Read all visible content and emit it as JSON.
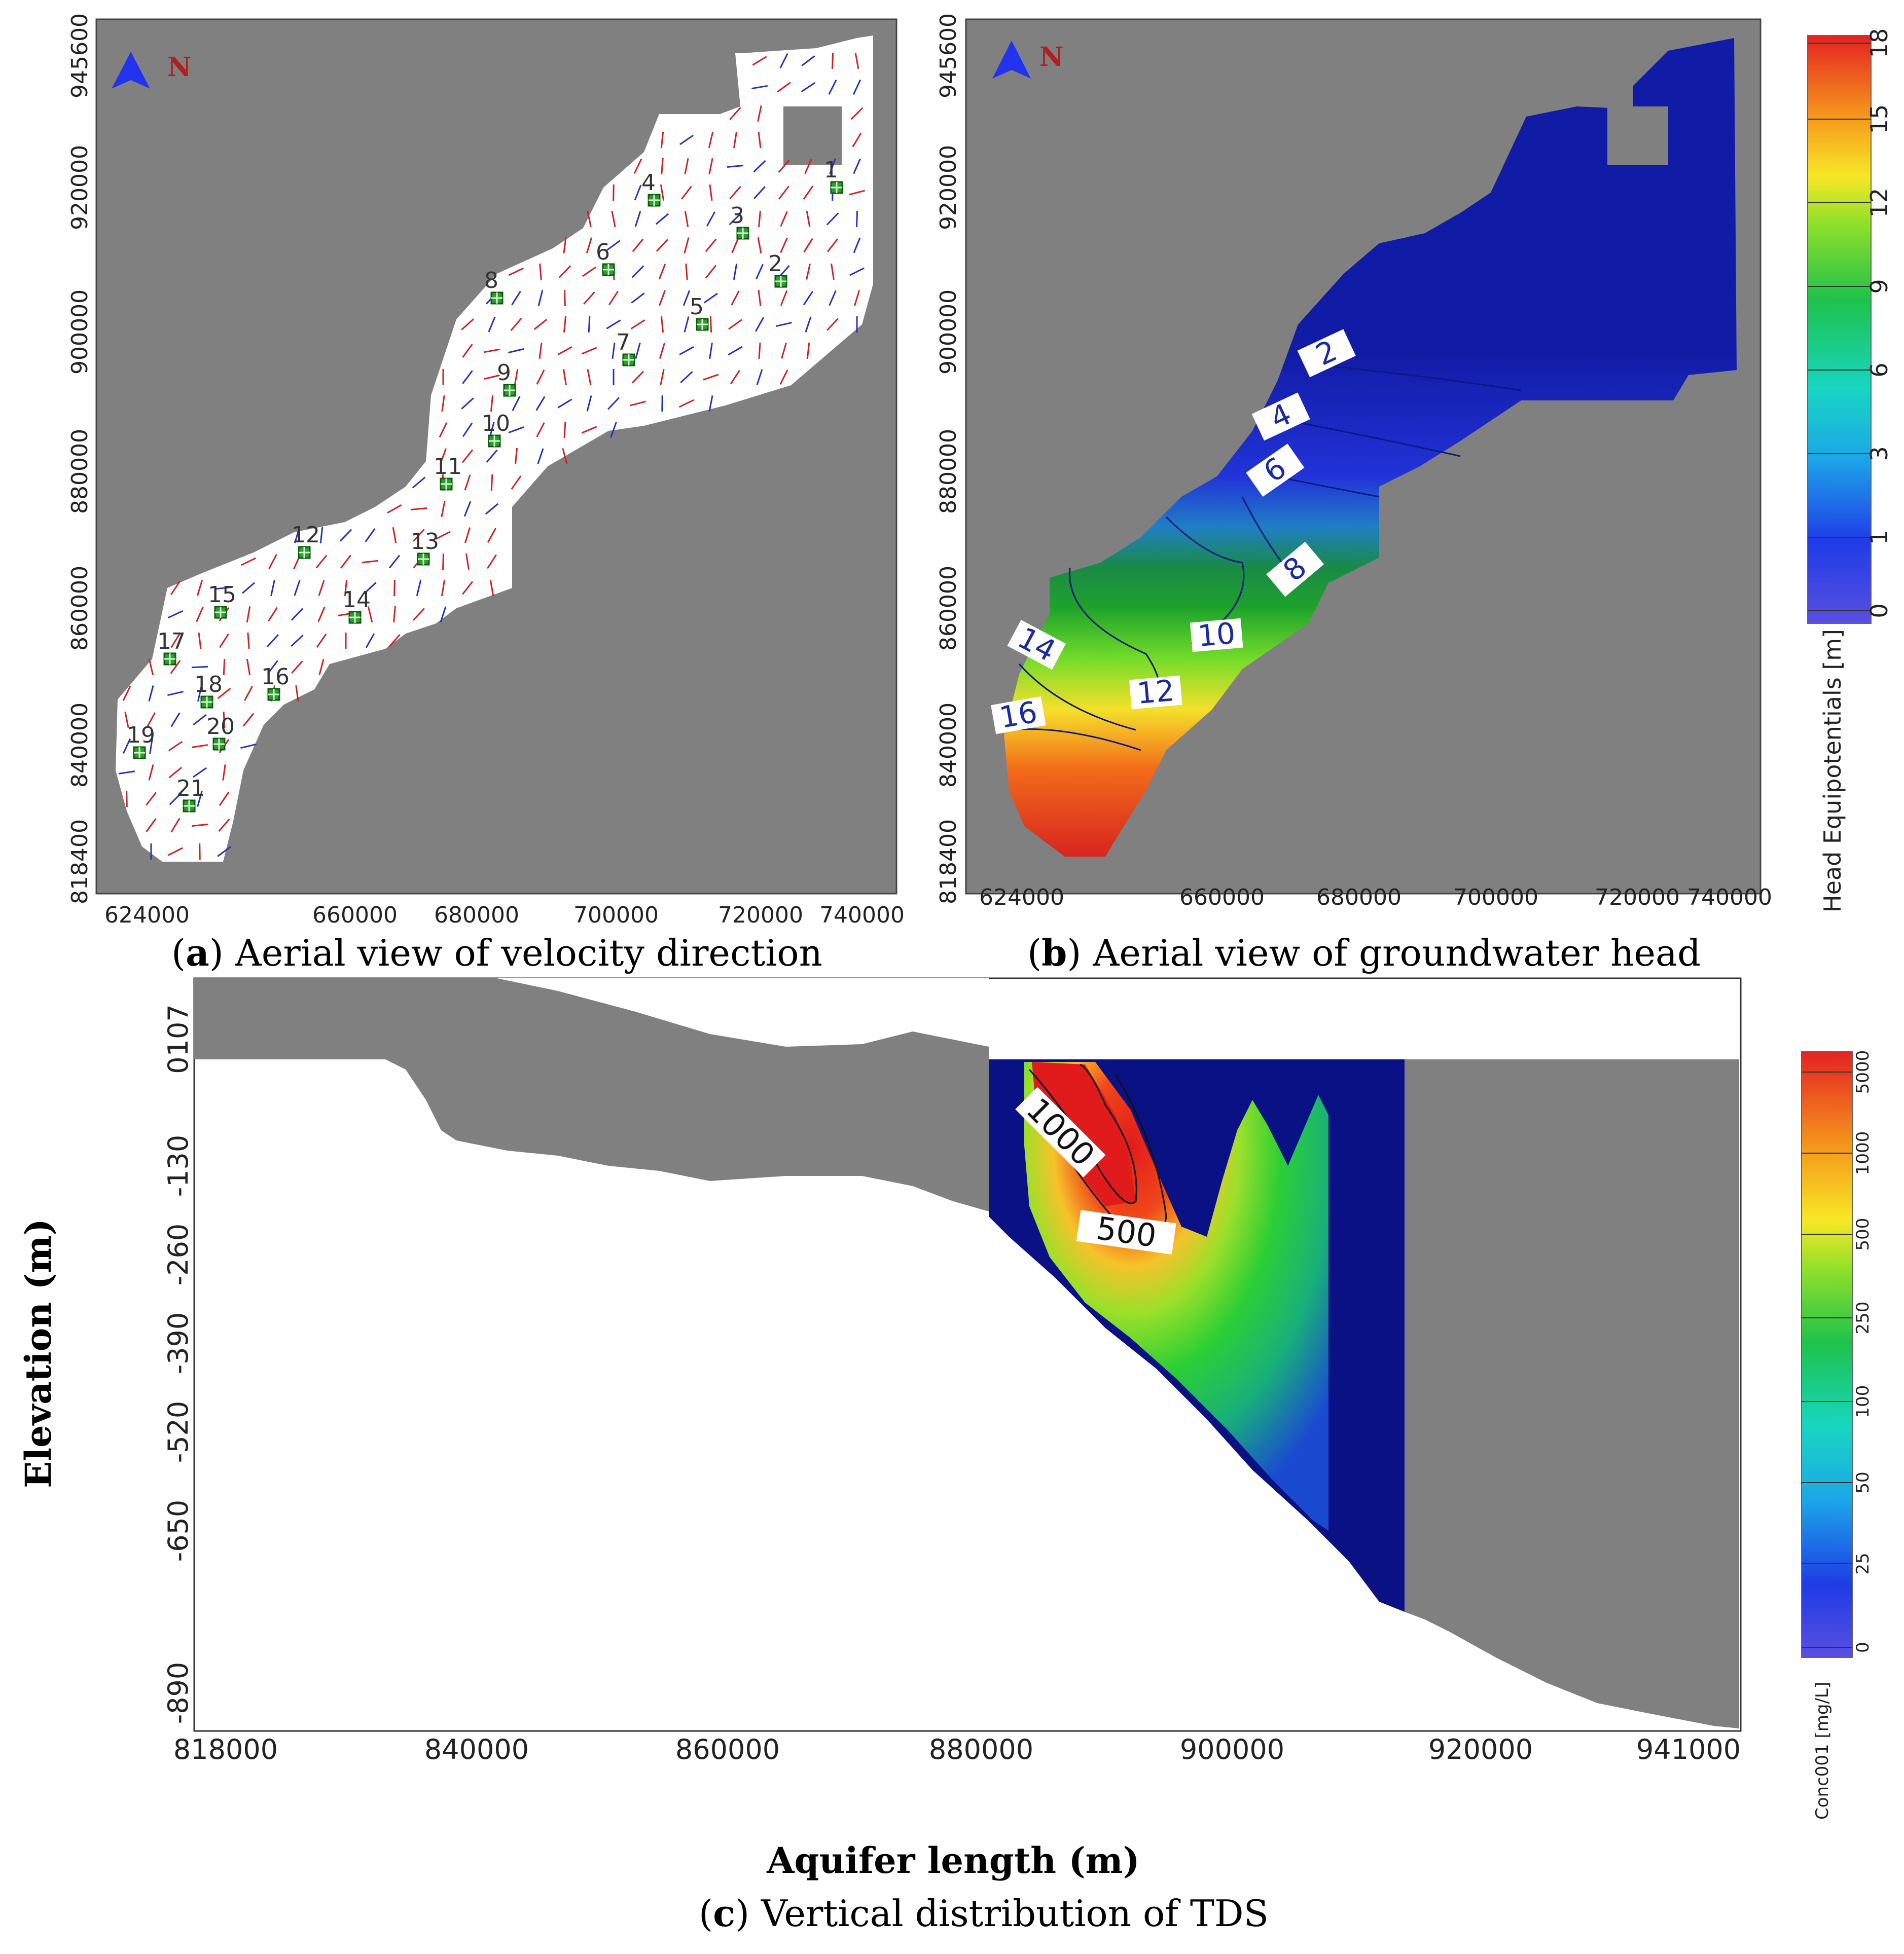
{
  "panel_a": {
    "caption_letter": "a",
    "caption_text": "Aerial view of velocity direction",
    "north_label": "N",
    "x_ticks": [
      "624000",
      "660000",
      "680000",
      "700000",
      "720000",
      "740000"
    ],
    "y_ticks": [
      "818400",
      "840000",
      "860000",
      "880000",
      "900000",
      "920000",
      "945600"
    ],
    "wells": [
      "1",
      "2",
      "3",
      "4",
      "5",
      "6",
      "7",
      "8",
      "9",
      "10",
      "11",
      "12",
      "13",
      "14",
      "15",
      "16",
      "17",
      "18",
      "19",
      "20",
      "21"
    ],
    "colors": {
      "domain": "#ffffff",
      "inactive": "#808080",
      "arrow_red": "#cc2222",
      "arrow_blue": "#2233bb",
      "well": "#1e8a1e"
    }
  },
  "panel_b": {
    "caption_letter": "b",
    "caption_text": "Aerial view of groundwater head",
    "north_label": "N",
    "x_ticks": [
      "624000",
      "660000",
      "680000",
      "700000",
      "720000 740000"
    ],
    "y_ticks": [
      "818400",
      "840000",
      "860000",
      "880000",
      "900000",
      "920000",
      "945600"
    ],
    "contour_labels": [
      "2",
      "4",
      "6",
      "8",
      "10",
      "12",
      "14",
      "16"
    ],
    "colorbar": {
      "title": "Head Equipotentials [m]",
      "ticks": [
        "0",
        "1",
        "3",
        "6",
        "9",
        "12",
        "15",
        "18"
      ]
    }
  },
  "panel_c": {
    "caption_letter": "c",
    "caption_text": "Vertical distribution of TDS",
    "x_ticks": [
      "818000",
      "840000",
      "860000",
      "880000",
      "900000",
      "920000",
      "941000"
    ],
    "y_ticks": [
      "0107",
      "-130",
      "-260",
      "-390",
      "-520",
      "-650",
      "-890"
    ],
    "xlabel": "Aquifer length (m)",
    "ylabel": "Elevation (m)",
    "contour_labels": [
      "1000",
      "500"
    ],
    "colorbar": {
      "title": "Conc001 [mg/L]",
      "ticks": [
        "0",
        "25",
        "50",
        "100",
        "250",
        "500",
        "1000",
        "5000"
      ]
    }
  }
}
